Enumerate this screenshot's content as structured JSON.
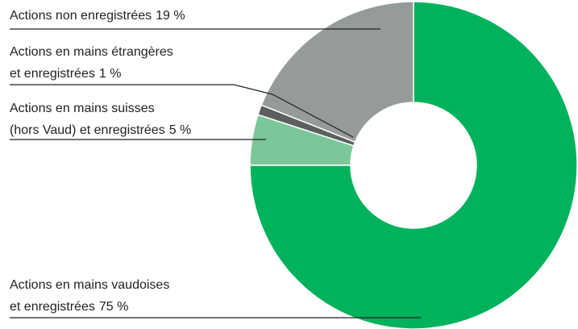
{
  "chart_data": {
    "type": "donut",
    "categories": [
      [
        "Actions non enregistrées"
      ],
      [
        "Actions en mains étrangères",
        "et enregistrées"
      ],
      [
        "Actions en mains suisses",
        "(hors Vaud) et enregistrées"
      ],
      [
        "Actions en mains vaudoises",
        "et enregistrées"
      ]
    ],
    "values": [
      19,
      1,
      5,
      75
    ],
    "value_labels": [
      "19 %",
      "1 %",
      "5 %",
      "75 %"
    ],
    "colors": [
      "#959b97",
      "#5b5f5d",
      "#7cc79a",
      "#00b25b"
    ]
  }
}
